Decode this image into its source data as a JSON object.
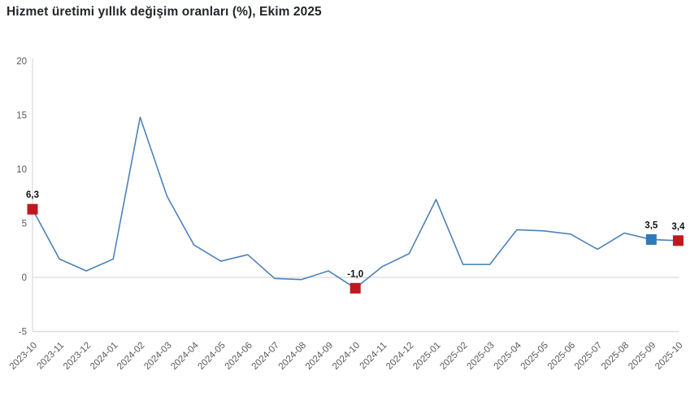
{
  "title": "Hizmet üretimi yıllık değişim oranları (%), Ekim 2025",
  "colors": {
    "background": "#ffffff",
    "title_text": "#23272b",
    "line": "#4d82b8",
    "marker_red": "#c0181f",
    "marker_blue": "#2e79bc",
    "axis_line": "#d9d9d9",
    "tick_label": "#595959",
    "annotation_text": "#111111"
  },
  "chart_data": {
    "type": "line",
    "title": "Hizmet üretimi yıllık değişim oranları (%), Ekim 2025",
    "x": [
      "2023-10",
      "2023-11",
      "2023-12",
      "2024-01",
      "2024-02",
      "2024-03",
      "2024-04",
      "2024-05",
      "2024-06",
      "2024-07",
      "2024-08",
      "2024-09",
      "2024-10",
      "2024-11",
      "2024-12",
      "2025-01",
      "2025-02",
      "2025-03",
      "2025-04",
      "2025-05",
      "2025-06",
      "2025-07",
      "2025-08",
      "2025-09",
      "2025-10"
    ],
    "values": [
      6.3,
      1.7,
      0.6,
      1.7,
      14.8,
      7.5,
      3.0,
      1.5,
      2.1,
      -0.1,
      -0.2,
      0.6,
      -1.0,
      1.0,
      2.2,
      7.2,
      1.2,
      1.2,
      4.4,
      4.3,
      4.0,
      2.6,
      4.1,
      3.5,
      3.4
    ],
    "y_ticks": [
      20,
      15,
      10,
      5,
      0,
      -5
    ],
    "ylim": [
      -5,
      20
    ],
    "xlabel": "",
    "ylabel": "",
    "legend": "none",
    "grid": "zero-line-and-bottom-only",
    "x_label_rotation_deg": 45,
    "annotations": [
      {
        "x": "2023-10",
        "value": 6.3,
        "label": "6,3",
        "marker": "red-square"
      },
      {
        "x": "2024-10",
        "value": -1.0,
        "label": "-1,0",
        "marker": "red-square"
      },
      {
        "x": "2025-09",
        "value": 3.5,
        "label": "3,5",
        "marker": "blue-square"
      },
      {
        "x": "2025-10",
        "value": 3.4,
        "label": "3,4",
        "marker": "red-square"
      }
    ]
  }
}
